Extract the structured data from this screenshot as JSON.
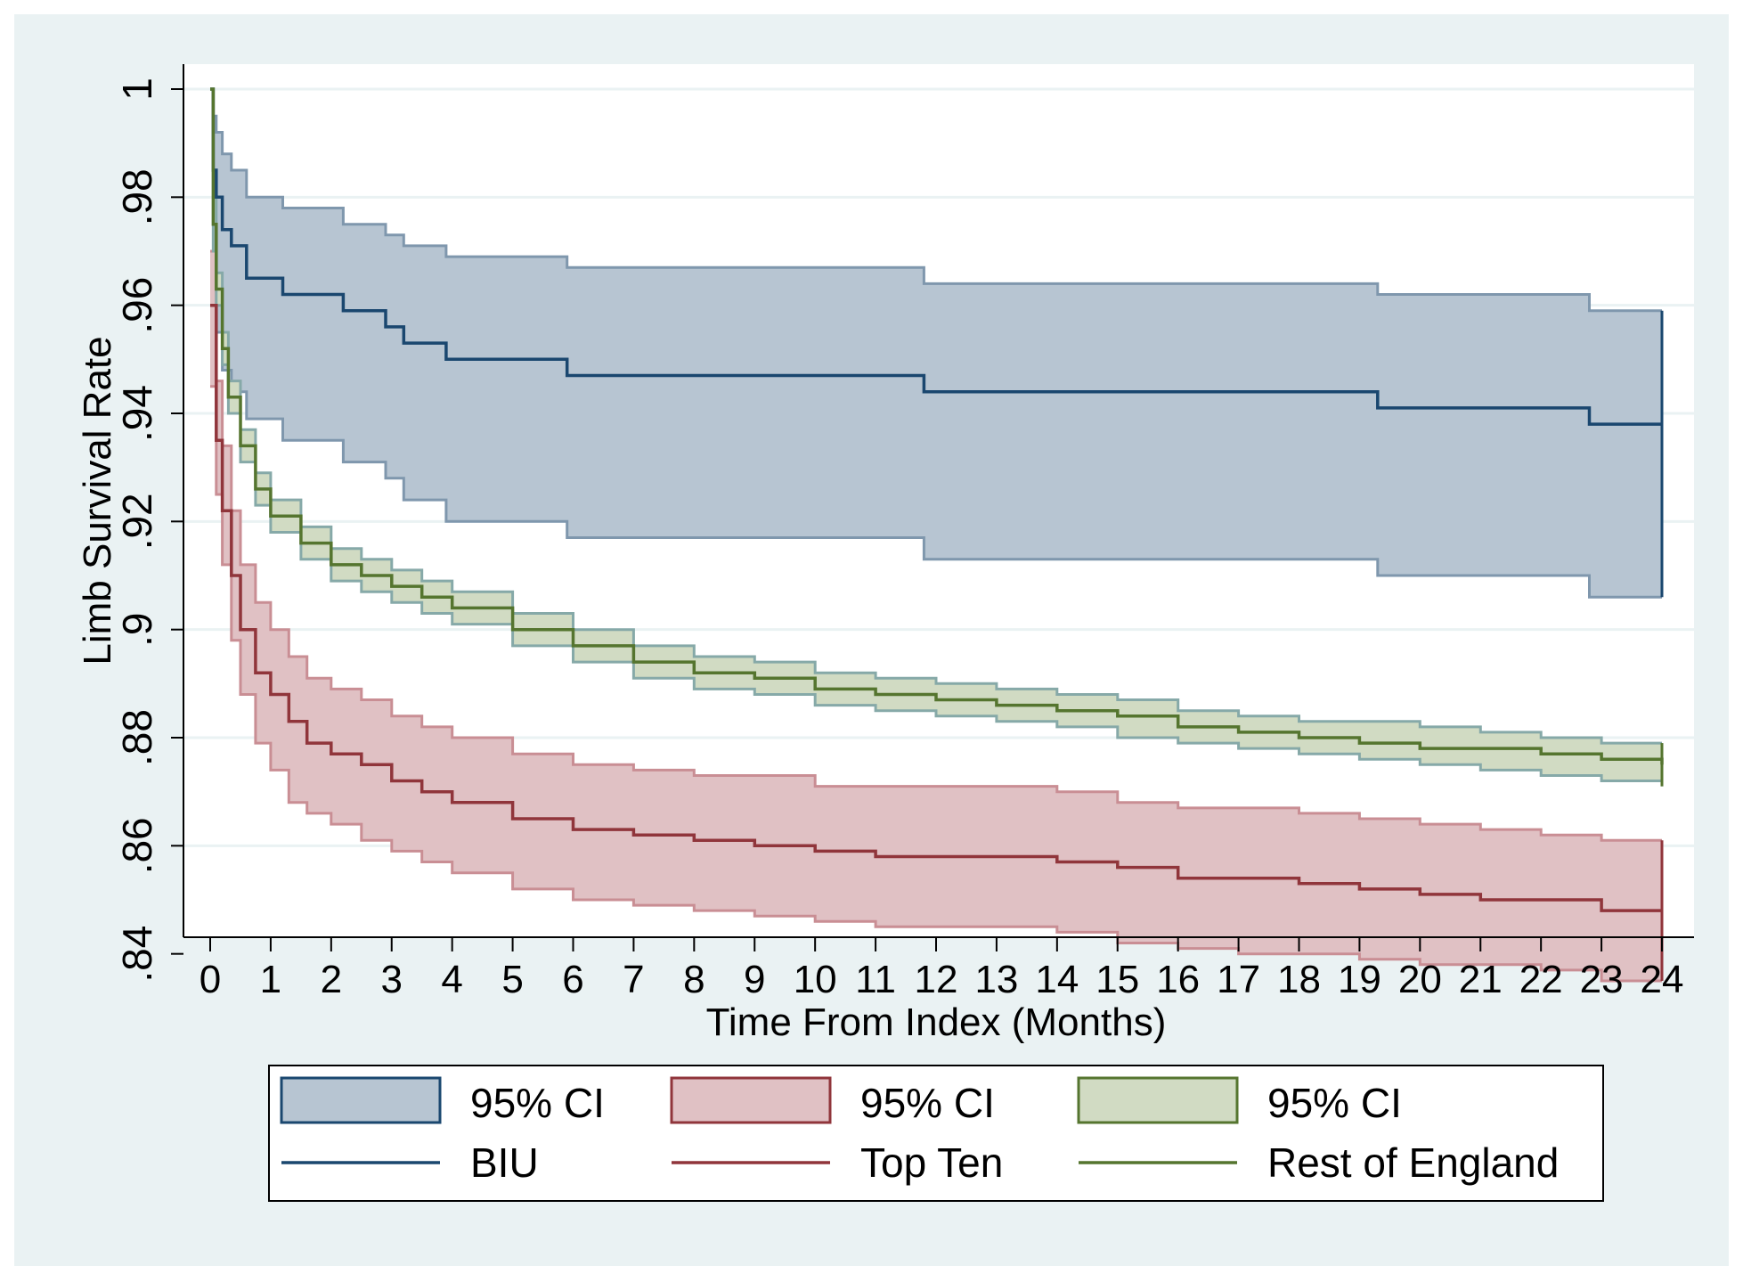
{
  "chart_data": {
    "type": "line",
    "subtype": "kaplan-meier",
    "title": "",
    "xlabel": "Time From Index (Months)",
    "ylabel": "Limb Survival Rate",
    "xlim": [
      0,
      24
    ],
    "ylim": [
      0.835,
      1.0
    ],
    "x_ticks": [
      "0",
      "1",
      "2",
      "3",
      "4",
      "5",
      "6",
      "7",
      "8",
      "9",
      "10",
      "11",
      "12",
      "13",
      "14",
      "15",
      "16",
      "17",
      "18",
      "19",
      "20",
      "21",
      "22",
      "23",
      "24"
    ],
    "y_ticks": [
      {
        "value": 0.84,
        "label": ".84"
      },
      {
        "value": 0.86,
        "label": ".86"
      },
      {
        "value": 0.88,
        "label": ".88"
      },
      {
        "value": 0.9,
        "label": ".9"
      },
      {
        "value": 0.92,
        "label": ".92"
      },
      {
        "value": 0.94,
        "label": ".94"
      },
      {
        "value": 0.96,
        "label": ".96"
      },
      {
        "value": 0.98,
        "label": ".98"
      },
      {
        "value": 1.0,
        "label": "1"
      }
    ],
    "grid": true,
    "legend_position": "bottom",
    "series": [
      {
        "name": "BIU",
        "ci_label": "95% CI",
        "line_color": "#1a476f",
        "fill_color": "#b7c5d2",
        "fill_edge": "#7f97ad",
        "points": [
          [
            0,
            1.0
          ],
          [
            0.05,
            0.985
          ],
          [
            0.1,
            0.98
          ],
          [
            0.2,
            0.974
          ],
          [
            0.35,
            0.971
          ],
          [
            0.6,
            0.965
          ],
          [
            1.2,
            0.962
          ],
          [
            2.2,
            0.959
          ],
          [
            2.9,
            0.956
          ],
          [
            3.2,
            0.953
          ],
          [
            3.9,
            0.95
          ],
          [
            5.9,
            0.947
          ],
          [
            11.8,
            0.944
          ],
          [
            19.3,
            0.941
          ],
          [
            22.8,
            0.938
          ],
          [
            24,
            0.938
          ]
        ],
        "lower": [
          [
            0,
            1.0
          ],
          [
            0.05,
            0.965
          ],
          [
            0.1,
            0.955
          ],
          [
            0.2,
            0.948
          ],
          [
            0.35,
            0.944
          ],
          [
            0.6,
            0.939
          ],
          [
            1.2,
            0.935
          ],
          [
            2.2,
            0.931
          ],
          [
            2.9,
            0.928
          ],
          [
            3.2,
            0.924
          ],
          [
            3.9,
            0.92
          ],
          [
            5.9,
            0.917
          ],
          [
            11.8,
            0.913
          ],
          [
            19.3,
            0.91
          ],
          [
            22.8,
            0.906
          ],
          [
            24,
            0.906
          ]
        ],
        "upper": [
          [
            0,
            1.0
          ],
          [
            0.05,
            0.995
          ],
          [
            0.1,
            0.992
          ],
          [
            0.2,
            0.988
          ],
          [
            0.35,
            0.985
          ],
          [
            0.6,
            0.98
          ],
          [
            1.2,
            0.978
          ],
          [
            2.2,
            0.975
          ],
          [
            2.9,
            0.973
          ],
          [
            3.2,
            0.971
          ],
          [
            3.9,
            0.969
          ],
          [
            5.9,
            0.967
          ],
          [
            11.8,
            0.964
          ],
          [
            19.3,
            0.962
          ],
          [
            22.8,
            0.959
          ],
          [
            24,
            0.959
          ]
        ]
      },
      {
        "name": "Top Ten",
        "ci_label": "95% CI",
        "line_color": "#90353b",
        "fill_color": "#e0c1c4",
        "fill_edge": "#c98e94",
        "points": [
          [
            0,
            0.96
          ],
          [
            0.1,
            0.935
          ],
          [
            0.2,
            0.922
          ],
          [
            0.35,
            0.91
          ],
          [
            0.5,
            0.9
          ],
          [
            0.75,
            0.892
          ],
          [
            1,
            0.888
          ],
          [
            1.3,
            0.883
          ],
          [
            1.6,
            0.879
          ],
          [
            2,
            0.877
          ],
          [
            2.5,
            0.875
          ],
          [
            3,
            0.872
          ],
          [
            3.5,
            0.87
          ],
          [
            4,
            0.868
          ],
          [
            5,
            0.865
          ],
          [
            6,
            0.863
          ],
          [
            7,
            0.862
          ],
          [
            8,
            0.861
          ],
          [
            9,
            0.86
          ],
          [
            10,
            0.859
          ],
          [
            11,
            0.858
          ],
          [
            12,
            0.858
          ],
          [
            13,
            0.858
          ],
          [
            14,
            0.857
          ],
          [
            15,
            0.856
          ],
          [
            16,
            0.854
          ],
          [
            17,
            0.854
          ],
          [
            18,
            0.853
          ],
          [
            19,
            0.852
          ],
          [
            20,
            0.851
          ],
          [
            21,
            0.85
          ],
          [
            22,
            0.85
          ],
          [
            23,
            0.848
          ],
          [
            24,
            0.848
          ]
        ],
        "lower": [
          [
            0,
            0.945
          ],
          [
            0.1,
            0.925
          ],
          [
            0.2,
            0.912
          ],
          [
            0.35,
            0.898
          ],
          [
            0.5,
            0.888
          ],
          [
            0.75,
            0.879
          ],
          [
            1,
            0.874
          ],
          [
            1.3,
            0.868
          ],
          [
            1.6,
            0.866
          ],
          [
            2,
            0.864
          ],
          [
            2.5,
            0.861
          ],
          [
            3,
            0.859
          ],
          [
            3.5,
            0.857
          ],
          [
            4,
            0.855
          ],
          [
            5,
            0.852
          ],
          [
            6,
            0.85
          ],
          [
            7,
            0.849
          ],
          [
            8,
            0.848
          ],
          [
            9,
            0.847
          ],
          [
            10,
            0.846
          ],
          [
            11,
            0.845
          ],
          [
            12,
            0.845
          ],
          [
            13,
            0.845
          ],
          [
            14,
            0.844
          ],
          [
            15,
            0.842
          ],
          [
            16,
            0.841
          ],
          [
            17,
            0.84
          ],
          [
            18,
            0.84
          ],
          [
            19,
            0.839
          ],
          [
            20,
            0.838
          ],
          [
            21,
            0.838
          ],
          [
            22,
            0.837
          ],
          [
            23,
            0.835
          ],
          [
            24,
            0.835
          ]
        ],
        "upper": [
          [
            0,
            0.97
          ],
          [
            0.1,
            0.946
          ],
          [
            0.2,
            0.934
          ],
          [
            0.35,
            0.922
          ],
          [
            0.5,
            0.912
          ],
          [
            0.75,
            0.905
          ],
          [
            1,
            0.9
          ],
          [
            1.3,
            0.895
          ],
          [
            1.6,
            0.891
          ],
          [
            2,
            0.889
          ],
          [
            2.5,
            0.887
          ],
          [
            3,
            0.884
          ],
          [
            3.5,
            0.882
          ],
          [
            4,
            0.88
          ],
          [
            5,
            0.877
          ],
          [
            6,
            0.875
          ],
          [
            7,
            0.874
          ],
          [
            8,
            0.873
          ],
          [
            9,
            0.873
          ],
          [
            10,
            0.871
          ],
          [
            11,
            0.871
          ],
          [
            12,
            0.871
          ],
          [
            13,
            0.871
          ],
          [
            14,
            0.87
          ],
          [
            15,
            0.868
          ],
          [
            16,
            0.867
          ],
          [
            17,
            0.867
          ],
          [
            18,
            0.866
          ],
          [
            19,
            0.865
          ],
          [
            20,
            0.864
          ],
          [
            21,
            0.863
          ],
          [
            22,
            0.862
          ],
          [
            23,
            0.861
          ],
          [
            24,
            0.861
          ]
        ]
      },
      {
        "name": "Rest of England",
        "ci_label": "95% CI",
        "line_color": "#55752f",
        "fill_color": "#d1dbc3",
        "fill_edge": "#86a9a8",
        "points": [
          [
            0,
            1.0
          ],
          [
            0.05,
            0.975
          ],
          [
            0.1,
            0.963
          ],
          [
            0.2,
            0.952
          ],
          [
            0.3,
            0.943
          ],
          [
            0.5,
            0.934
          ],
          [
            0.75,
            0.926
          ],
          [
            1,
            0.921
          ],
          [
            1.5,
            0.916
          ],
          [
            2,
            0.912
          ],
          [
            2.5,
            0.91
          ],
          [
            3,
            0.908
          ],
          [
            3.5,
            0.906
          ],
          [
            4,
            0.904
          ],
          [
            5,
            0.9
          ],
          [
            6,
            0.897
          ],
          [
            7,
            0.894
          ],
          [
            8,
            0.892
          ],
          [
            9,
            0.891
          ],
          [
            10,
            0.889
          ],
          [
            11,
            0.888
          ],
          [
            12,
            0.887
          ],
          [
            13,
            0.886
          ],
          [
            14,
            0.885
          ],
          [
            15,
            0.884
          ],
          [
            16,
            0.882
          ],
          [
            17,
            0.881
          ],
          [
            18,
            0.88
          ],
          [
            19,
            0.879
          ],
          [
            20,
            0.878
          ],
          [
            21,
            0.878
          ],
          [
            22,
            0.877
          ],
          [
            23,
            0.876
          ],
          [
            24,
            0.875
          ]
        ],
        "lower": [
          [
            0,
            1.0
          ],
          [
            0.05,
            0.97
          ],
          [
            0.1,
            0.96
          ],
          [
            0.2,
            0.949
          ],
          [
            0.3,
            0.94
          ],
          [
            0.5,
            0.931
          ],
          [
            0.75,
            0.923
          ],
          [
            1,
            0.918
          ],
          [
            1.5,
            0.913
          ],
          [
            2,
            0.909
          ],
          [
            2.5,
            0.907
          ],
          [
            3,
            0.905
          ],
          [
            3.5,
            0.903
          ],
          [
            4,
            0.901
          ],
          [
            5,
            0.897
          ],
          [
            6,
            0.894
          ],
          [
            7,
            0.891
          ],
          [
            8,
            0.889
          ],
          [
            9,
            0.888
          ],
          [
            10,
            0.886
          ],
          [
            11,
            0.885
          ],
          [
            12,
            0.884
          ],
          [
            13,
            0.883
          ],
          [
            14,
            0.882
          ],
          [
            15,
            0.88
          ],
          [
            16,
            0.879
          ],
          [
            17,
            0.878
          ],
          [
            18,
            0.877
          ],
          [
            19,
            0.876
          ],
          [
            20,
            0.875
          ],
          [
            21,
            0.874
          ],
          [
            22,
            0.873
          ],
          [
            23,
            0.872
          ],
          [
            24,
            0.871
          ]
        ],
        "upper": [
          [
            0,
            1.0
          ],
          [
            0.05,
            0.98
          ],
          [
            0.1,
            0.966
          ],
          [
            0.2,
            0.955
          ],
          [
            0.3,
            0.946
          ],
          [
            0.5,
            0.937
          ],
          [
            0.75,
            0.929
          ],
          [
            1,
            0.924
          ],
          [
            1.5,
            0.919
          ],
          [
            2,
            0.915
          ],
          [
            2.5,
            0.913
          ],
          [
            3,
            0.911
          ],
          [
            3.5,
            0.909
          ],
          [
            4,
            0.907
          ],
          [
            5,
            0.903
          ],
          [
            6,
            0.9
          ],
          [
            7,
            0.897
          ],
          [
            8,
            0.895
          ],
          [
            9,
            0.894
          ],
          [
            10,
            0.892
          ],
          [
            11,
            0.891
          ],
          [
            12,
            0.89
          ],
          [
            13,
            0.889
          ],
          [
            14,
            0.888
          ],
          [
            15,
            0.887
          ],
          [
            16,
            0.885
          ],
          [
            17,
            0.884
          ],
          [
            18,
            0.883
          ],
          [
            19,
            0.883
          ],
          [
            20,
            0.882
          ],
          [
            21,
            0.881
          ],
          [
            22,
            0.88
          ],
          [
            23,
            0.879
          ],
          [
            24,
            0.879
          ]
        ]
      }
    ]
  }
}
